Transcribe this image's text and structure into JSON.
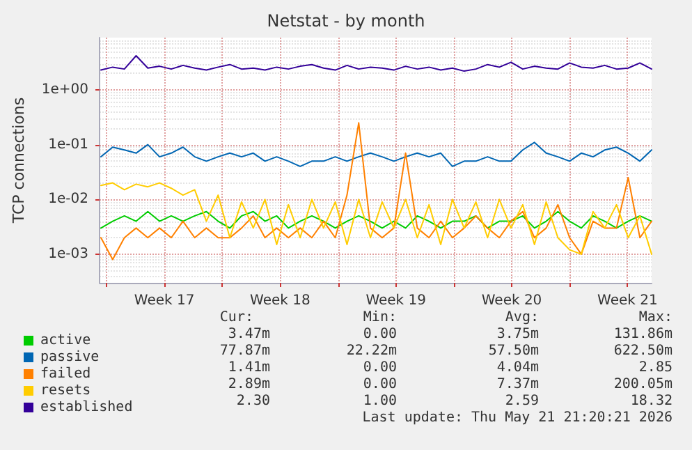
{
  "chart_data": {
    "type": "line",
    "title": "Netstat - by month",
    "ylabel": "TCP connections",
    "x": [
      "2026-04-19T16:00",
      "2026-04-20T09:00",
      "2026-04-21T02:00",
      "2026-04-21T19:00",
      "2026-04-22T12:00",
      "2026-04-23T05:00",
      "2026-04-23T22:00",
      "2026-04-24T15:00",
      "2026-04-25T08:00",
      "2026-04-26T01:00",
      "2026-04-26T18:00",
      "2026-04-27T11:00",
      "2026-04-28T04:00",
      "2026-04-28T21:00",
      "2026-04-29T14:00",
      "2026-04-30T07:00",
      "2026-05-01T00:00",
      "2026-05-01T17:00",
      "2026-05-02T10:00",
      "2026-05-03T03:00",
      "2026-05-03T20:00",
      "2026-05-04T13:00",
      "2026-05-05T06:00",
      "2026-05-05T23:00",
      "2026-05-06T16:00",
      "2026-05-07T09:00",
      "2026-05-08T02:00",
      "2026-05-08T19:00",
      "2026-05-09T12:00",
      "2026-05-10T05:00",
      "2026-05-10T22:00",
      "2026-05-11T15:00",
      "2026-05-12T08:00",
      "2026-05-13T01:00",
      "2026-05-13T18:00",
      "2026-05-14T11:00",
      "2026-05-15T04:00",
      "2026-05-15T21:00",
      "2026-05-16T14:00",
      "2026-05-17T07:00",
      "2026-05-18T00:00",
      "2026-05-18T17:00",
      "2026-05-19T10:00",
      "2026-05-20T03:00",
      "2026-05-20T20:00",
      "2026-05-21T13:00",
      "2026-05-22T06:00",
      "2026-05-22T23:00"
    ],
    "xlim": [
      "2026-04-19T14:00",
      "2026-05-22T23:00"
    ],
    "xticks": [
      {
        "value": "2026-04-20",
        "label": null
      },
      {
        "value": "2026-04-23T12:00",
        "label": "Week 17"
      },
      {
        "value": "2026-04-27",
        "label": null
      },
      {
        "value": "2026-04-30T12:00",
        "label": "Week 18"
      },
      {
        "value": "2026-05-04",
        "label": null
      },
      {
        "value": "2026-05-07T12:00",
        "label": "Week 19"
      },
      {
        "value": "2026-05-11",
        "label": null
      },
      {
        "value": "2026-05-14T12:00",
        "label": "Week 20"
      },
      {
        "value": "2026-05-18",
        "label": null
      },
      {
        "value": "2026-05-21T12:00",
        "label": "Week 21"
      }
    ],
    "ylim": [
      0.0003,
      9
    ],
    "log": true,
    "yticks": [
      {
        "value": 0.001,
        "label": "1e-03"
      },
      {
        "value": 0.01,
        "label": "1e-02"
      },
      {
        "value": 0.1,
        "label": "1e-01"
      },
      {
        "value": 1,
        "label": "1e+00"
      }
    ],
    "grid": true,
    "legend": "bottom left",
    "marker": "none",
    "line_style": "solid",
    "series": [
      {
        "name": "active",
        "color": "#00cc00",
        "values": [
          0.003,
          0.004,
          0.005,
          0.004,
          0.006,
          0.004,
          0.005,
          0.004,
          0.005,
          0.006,
          0.004,
          0.003,
          0.005,
          0.006,
          0.004,
          0.005,
          0.003,
          0.004,
          0.005,
          0.004,
          0.003,
          0.004,
          0.005,
          0.004,
          0.003,
          0.004,
          0.003,
          0.005,
          0.004,
          0.003,
          0.004,
          0.004,
          0.005,
          0.003,
          0.004,
          0.004,
          0.005,
          0.003,
          0.004,
          0.006,
          0.004,
          0.003,
          0.005,
          0.004,
          0.003,
          0.004,
          0.005,
          0.004
        ]
      },
      {
        "name": "passive",
        "color": "#0066b3",
        "values": [
          0.06,
          0.09,
          0.08,
          0.07,
          0.1,
          0.06,
          0.07,
          0.09,
          0.06,
          0.05,
          0.06,
          0.07,
          0.06,
          0.07,
          0.05,
          0.06,
          0.05,
          0.04,
          0.05,
          0.05,
          0.06,
          0.05,
          0.06,
          0.07,
          0.06,
          0.05,
          0.06,
          0.07,
          0.06,
          0.07,
          0.04,
          0.05,
          0.05,
          0.06,
          0.05,
          0.05,
          0.08,
          0.11,
          0.07,
          0.06,
          0.05,
          0.07,
          0.06,
          0.08,
          0.09,
          0.07,
          0.05,
          0.08
        ]
      },
      {
        "name": "failed",
        "color": "#ff8000",
        "values": [
          0.002,
          0.0008,
          0.002,
          0.003,
          0.002,
          0.003,
          0.002,
          0.004,
          0.002,
          0.003,
          0.002,
          0.002,
          0.003,
          0.005,
          0.002,
          0.003,
          0.002,
          0.003,
          0.002,
          0.004,
          0.002,
          0.012,
          0.25,
          0.003,
          0.002,
          0.003,
          0.07,
          0.003,
          0.002,
          0.004,
          0.002,
          0.003,
          0.005,
          0.003,
          0.002,
          0.004,
          0.006,
          0.002,
          0.003,
          0.008,
          0.002,
          0.001,
          0.004,
          0.003,
          0.003,
          0.025,
          0.002,
          0.004
        ]
      },
      {
        "name": "resets",
        "color": "#ffcc00",
        "values": [
          0.018,
          0.02,
          0.015,
          0.019,
          0.017,
          0.02,
          0.016,
          0.012,
          0.015,
          0.004,
          0.012,
          0.002,
          0.009,
          0.003,
          0.01,
          0.0015,
          0.008,
          0.002,
          0.01,
          0.003,
          0.009,
          0.0015,
          0.01,
          0.002,
          0.009,
          0.003,
          0.01,
          0.002,
          0.008,
          0.0015,
          0.01,
          0.003,
          0.009,
          0.002,
          0.01,
          0.003,
          0.008,
          0.0015,
          0.009,
          0.002,
          0.0012,
          0.001,
          0.006,
          0.003,
          0.008,
          0.002,
          0.005,
          0.001
        ]
      },
      {
        "name": "established",
        "color": "#330099",
        "values": [
          2.3,
          2.6,
          2.4,
          4.2,
          2.5,
          2.7,
          2.4,
          2.8,
          2.5,
          2.3,
          2.6,
          2.9,
          2.4,
          2.5,
          2.3,
          2.6,
          2.4,
          2.7,
          2.9,
          2.5,
          2.3,
          2.8,
          2.4,
          2.6,
          2.5,
          2.3,
          2.7,
          2.4,
          2.6,
          2.3,
          2.5,
          2.2,
          2.4,
          2.9,
          2.6,
          3.2,
          2.4,
          2.7,
          2.5,
          2.4,
          3.1,
          2.6,
          2.5,
          2.8,
          2.4,
          2.5,
          3.1,
          2.4
        ]
      }
    ],
    "annotations": [
      "Cur:",
      "Min:",
      "Avg:",
      "Max:",
      "3.47m",
      "0.00",
      "3.75m",
      "131.86m",
      "77.87m",
      "22.22m",
      "57.50m",
      "622.50m",
      "1.41m",
      "0.00",
      "4.04m",
      "2.85",
      "2.89m",
      "0.00",
      "7.37m",
      "200.05m",
      "2.30",
      "1.00",
      "2.59",
      "18.32",
      "Last update: Thu May 21 21:20:21 2026"
    ]
  }
}
